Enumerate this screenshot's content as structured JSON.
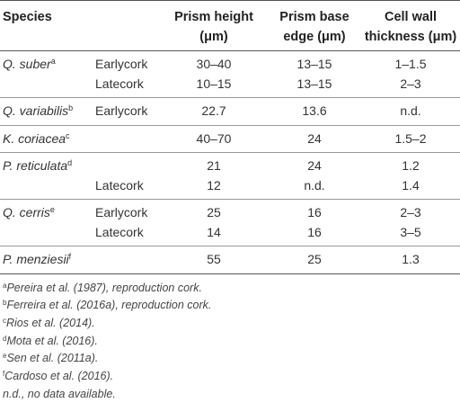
{
  "header": {
    "col1": "Species",
    "col3_line1": "Prism height",
    "col3_line2": "(μm)",
    "col4_line1": "Prism base",
    "col4_line2": "edge (μm)",
    "col5_line1": "Cell wall",
    "col5_line2": "thickness (μm)"
  },
  "rows": [
    {
      "species": "Q. suber",
      "sup": "a",
      "type": "Earlycork",
      "height": "30–40",
      "base": "13–15",
      "wall": "1–1.5"
    },
    {
      "species": "",
      "sup": "",
      "type": "Latecork",
      "height": "10–15",
      "base": "13–15",
      "wall": "2–3"
    },
    {
      "species": "Q. variabilis",
      "sup": "b",
      "type": "Earlycork",
      "height": "22.7",
      "base": "13.6",
      "wall": "n.d."
    },
    {
      "species": "K. coriacea",
      "sup": "c",
      "type": "",
      "height": "40–70",
      "base": "24",
      "wall": "1.5–2"
    },
    {
      "species": "P. reticulata",
      "sup": "d",
      "type": "",
      "height": "21",
      "base": "24",
      "wall": "1.2"
    },
    {
      "species": "",
      "sup": "",
      "type": "Latecork",
      "height": "12",
      "base": "n.d.",
      "wall": "1.4"
    },
    {
      "species": "Q. cerris",
      "sup": "e",
      "type": "Earlycork",
      "height": "25",
      "base": "16",
      "wall": "2–3"
    },
    {
      "species": "",
      "sup": "",
      "type": "Latecork",
      "height": "14",
      "base": "16",
      "wall": "3–5"
    },
    {
      "species": "P. menziesii",
      "sup": "f",
      "type": "",
      "height": "55",
      "base": "25",
      "wall": "1.3"
    }
  ],
  "footnotes": [
    {
      "mark": "a",
      "text": "Pereira et al. (1987), reproduction cork."
    },
    {
      "mark": "b",
      "text": "Ferreira et al. (2016a), reproduction cork."
    },
    {
      "mark": "c",
      "text": "Rios et al. (2014)."
    },
    {
      "mark": "d",
      "text": "Mota et al. (2016)."
    },
    {
      "mark": "e",
      "text": "Sen et al. (2011a)."
    },
    {
      "mark": "f",
      "text": "Cardoso et al. (2016)."
    },
    {
      "mark": "",
      "text": "n.d., no data available."
    }
  ]
}
